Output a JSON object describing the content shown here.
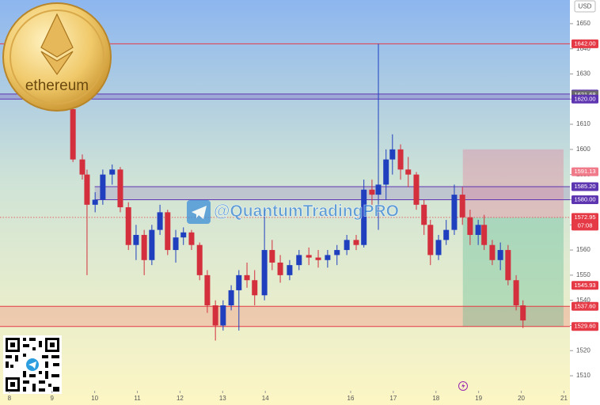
{
  "chart_data": {
    "type": "candlestick",
    "currency": "USD",
    "watermark": "@QuantumTradingPRO",
    "logo_text": "ethereum",
    "xlim": [
      7.78,
      21.14
    ],
    "ylim": [
      1505.3,
      1659.4
    ],
    "xticks": [
      8,
      9,
      10,
      11,
      12,
      13,
      14,
      16,
      17,
      18,
      19,
      20,
      21
    ],
    "yticks": [
      1510,
      1520,
      1530,
      1540,
      1550,
      1560,
      1570,
      1580,
      1590,
      1600,
      1610,
      1620,
      1630,
      1640,
      1650
    ],
    "up_color": "#1f3fbf",
    "down_color": "#d32f3c",
    "x": [
      9.49,
      9.71,
      9.82,
      10.01,
      10.19,
      10.41,
      10.6,
      10.79,
      10.97,
      11.16,
      11.34,
      11.53,
      11.71,
      11.9,
      12.08,
      12.27,
      12.46,
      12.64,
      12.83,
      13.01,
      13.2,
      13.38,
      13.57,
      13.75,
      13.98,
      14.16,
      14.35,
      14.57,
      14.79,
      15.02,
      15.24,
      15.46,
      15.68,
      15.91,
      16.13,
      16.31,
      16.5,
      16.65,
      16.83,
      16.98,
      17.17,
      17.35,
      17.54,
      17.72,
      17.87,
      18.06,
      18.24,
      18.43,
      18.62,
      18.8,
      18.99,
      19.13,
      19.32,
      19.51,
      19.69,
      19.88,
      20.04
    ],
    "open": [
      1616,
      1596,
      1590,
      1578,
      1580,
      1590,
      1592,
      1577,
      1562,
      1566,
      1556,
      1568,
      1575,
      1560,
      1565,
      1567,
      1562,
      1550,
      1538,
      1530,
      1538,
      1544,
      1550,
      1548,
      1542,
      1560,
      1555,
      1550,
      1554,
      1558,
      1557,
      1556,
      1558,
      1560,
      1564,
      1562,
      1584,
      1582,
      1586,
      1596,
      1600,
      1592,
      1590,
      1578,
      1570,
      1558,
      1564,
      1568,
      1582,
      1573,
      1566,
      1570,
      1562,
      1556,
      1560,
      1548,
      1538
    ],
    "high": [
      1617,
      1598,
      1592,
      1583,
      1592,
      1594,
      1593,
      1579,
      1570,
      1568,
      1570,
      1578,
      1576,
      1568,
      1569,
      1568,
      1563,
      1552,
      1540,
      1540,
      1546,
      1552,
      1555,
      1552,
      1576,
      1564,
      1558,
      1556,
      1560,
      1561,
      1560,
      1560,
      1562,
      1566,
      1566,
      1588,
      1588,
      1642,
      1600,
      1606,
      1602,
      1597,
      1591,
      1580,
      1572,
      1566,
      1572,
      1586,
      1585,
      1576,
      1572,
      1574,
      1564,
      1563,
      1562,
      1550,
      1540
    ],
    "low": [
      1595,
      1588,
      1550,
      1575,
      1578,
      1586,
      1575,
      1560,
      1556,
      1550,
      1554,
      1566,
      1558,
      1555,
      1562,
      1560,
      1548,
      1535,
      1524,
      1528,
      1536,
      1528,
      1545,
      1538,
      1540,
      1552,
      1547,
      1548,
      1552,
      1554,
      1553,
      1553,
      1554,
      1558,
      1560,
      1561,
      1578,
      1568,
      1580,
      1590,
      1588,
      1585,
      1576,
      1566,
      1554,
      1556,
      1562,
      1566,
      1570,
      1562,
      1562,
      1560,
      1554,
      1552,
      1546,
      1536,
      1529
    ],
    "close": [
      1596,
      1590,
      1578,
      1580,
      1590,
      1592,
      1577,
      1562,
      1566,
      1556,
      1568,
      1575,
      1560,
      1565,
      1567,
      1562,
      1550,
      1538,
      1530,
      1538,
      1544,
      1550,
      1548,
      1542,
      1560,
      1555,
      1550,
      1554,
      1558,
      1557,
      1556,
      1558,
      1560,
      1564,
      1562,
      1584,
      1582,
      1586,
      1596,
      1600,
      1592,
      1590,
      1578,
      1570,
      1558,
      1564,
      1568,
      1582,
      1573,
      1566,
      1570,
      1562,
      1556,
      1560,
      1548,
      1538,
      1532
    ],
    "zones": [
      {
        "from": 1620,
        "to": 1622,
        "color": "rgba(103,58,183,0.25)"
      },
      {
        "from": 1580,
        "to": 1585.2,
        "color": "rgba(103,58,183,0.18)",
        "x_start": 10.0
      },
      {
        "from": 1529.6,
        "to": 1537.6,
        "color": "rgba(242,120,110,0.3)"
      }
    ],
    "levels": [
      {
        "value": 1642,
        "label": "1642.00",
        "color": "#e53945",
        "line": true
      },
      {
        "value": 1622,
        "label": "1622.00",
        "color": "#5e35b1",
        "line": true
      },
      {
        "value": 1621.68,
        "label": "1621.68",
        "color": "#6b6b6b",
        "line": false
      },
      {
        "value": 1620,
        "label": "1620.00",
        "color": "#5e35b1",
        "line": true
      },
      {
        "value": 1591.13,
        "label": "1591.13",
        "color": "#f07a8a",
        "line": false
      },
      {
        "value": 1585.2,
        "label": "1585.20",
        "color": "#5e35b1",
        "line": true,
        "x_start": 10.0
      },
      {
        "value": 1580,
        "label": "1580.00",
        "color": "#5e35b1",
        "line": true,
        "x_start": 10.0
      },
      {
        "value": 1572.95,
        "label": "1572.95",
        "countdown": "07:08",
        "color": "#e53945",
        "line": true,
        "style": "dotted"
      },
      {
        "value": 1545.93,
        "label": "1545.93",
        "color": "#e53945",
        "line": false
      },
      {
        "value": 1537.6,
        "label": "1537.60",
        "color": "#e53945",
        "line": true
      },
      {
        "value": 1529.6,
        "label": "1529.60",
        "color": "#e53945",
        "line": true
      }
    ],
    "position": {
      "x": [
        18.63,
        20.99
      ],
      "stop": 1600,
      "entry": 1572.95,
      "target": 1529.6,
      "stop_color": "rgba(232,120,150,0.35)",
      "target_color": "rgba(70,180,140,0.32)"
    }
  }
}
